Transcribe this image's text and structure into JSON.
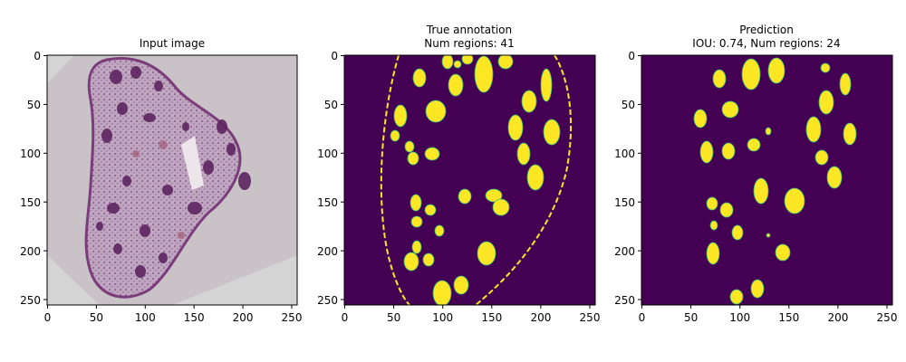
{
  "panels": [
    {
      "id": "input",
      "title_lines": [
        "Input image"
      ],
      "x_ticks": [
        "0",
        "50",
        "100",
        "150",
        "200",
        "250"
      ],
      "y_ticks": [
        "0",
        "50",
        "100",
        "150",
        "200",
        "250"
      ],
      "image_kind": "histology tissue section"
    },
    {
      "id": "truth",
      "title_lines": [
        "True annotation",
        "Num regions: 41"
      ],
      "x_ticks": [
        "0",
        "50",
        "100",
        "150",
        "200",
        "250"
      ],
      "y_ticks": [
        "0",
        "50",
        "100",
        "150",
        "200",
        "250"
      ],
      "image_kind": "segmentation mask"
    },
    {
      "id": "pred",
      "title_lines": [
        "Prediction",
        "IOU: 0.74, Num regions: 24"
      ],
      "x_ticks": [
        "0",
        "50",
        "100",
        "150",
        "200",
        "250"
      ],
      "y_ticks": [
        "0",
        "50",
        "100",
        "150",
        "200",
        "250"
      ],
      "image_kind": "segmentation mask"
    }
  ],
  "colors": {
    "mask_background": "#440154",
    "mask_foreground": "#fde725",
    "mask_edge": "#35b779",
    "tissue": "#b89ab8",
    "nuclei": "#6a2b6a",
    "slide_background": "#d4d4d4"
  }
}
